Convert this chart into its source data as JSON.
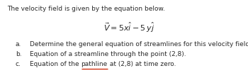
{
  "background_color": "#ffffff",
  "title_text": "The velocity field is given by the equation below.",
  "title_fontsize": 6.5,
  "equation_text": "$\\vec{V} = 5x\\hat{i} - 5\\,y\\hat{j}$",
  "equation_fontsize": 8.0,
  "items": [
    {
      "label": "a.",
      "text": "Determine the general equation of streamlines for this velocity field."
    },
    {
      "label": "b.",
      "text": "Equation of a streamline through the point (2,8)."
    },
    {
      "label": "c.",
      "text": "Equation of the "
    }
  ],
  "item_fontsize": 6.5,
  "pathline_word": "pathline",
  "pathline_suffix": " at (2,8) at time zero.",
  "underline_color": "#cc2200",
  "text_color": "#2a2a2a"
}
